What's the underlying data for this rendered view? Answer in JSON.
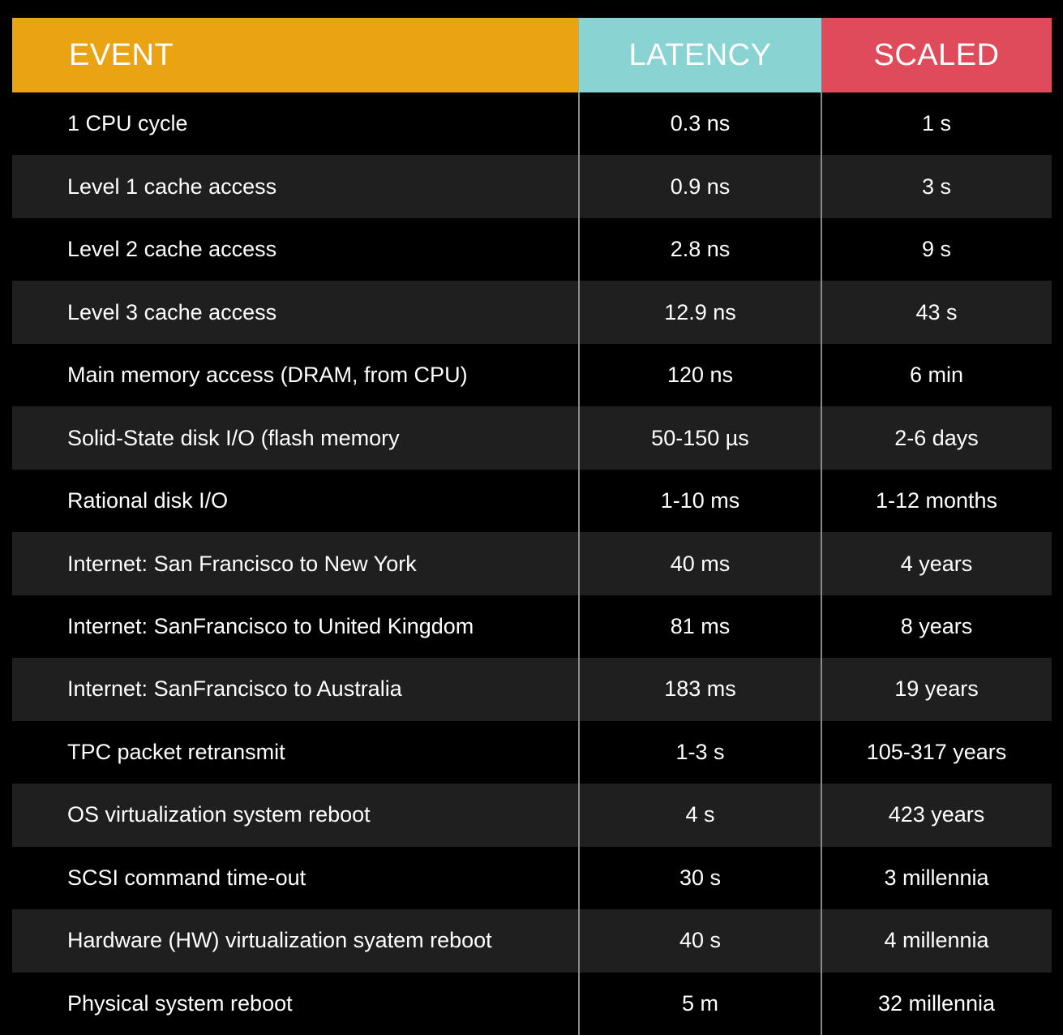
{
  "headers": {
    "event": "EVENT",
    "latency": "LATENCY",
    "scaled": "SCALED"
  },
  "colors": {
    "event_header": "#e9a313",
    "latency_header": "#89d3d3",
    "scaled_header": "#e04b5b",
    "row_alt": "#1f1f1f",
    "background": "#000000"
  },
  "rows": [
    {
      "event": "1 CPU cycle",
      "latency": "0.3 ns",
      "scaled": "1 s"
    },
    {
      "event": "Level 1 cache access",
      "latency": "0.9 ns",
      "scaled": "3 s"
    },
    {
      "event": "Level 2 cache access",
      "latency": "2.8 ns",
      "scaled": "9 s"
    },
    {
      "event": "Level 3 cache access",
      "latency": "12.9 ns",
      "scaled": "43 s"
    },
    {
      "event": "Main memory access (DRAM, from CPU)",
      "latency": "120 ns",
      "scaled": "6 min"
    },
    {
      "event": "Solid-State disk I/O (flash memory",
      "latency": "50-150 µs",
      "scaled": "2-6 days"
    },
    {
      "event": "Rational disk I/O",
      "latency": "1-10 ms",
      "scaled": "1-12 months"
    },
    {
      "event": "Internet: San Francisco to New York",
      "latency": "40 ms",
      "scaled": "4 years"
    },
    {
      "event": "Internet: SanFrancisco to United Kingdom",
      "latency": "81 ms",
      "scaled": "8 years"
    },
    {
      "event": "Internet: SanFrancisco to Australia",
      "latency": "183 ms",
      "scaled": "19 years"
    },
    {
      "event": "TPC packet retransmit",
      "latency": "1-3 s",
      "scaled": "105-317 years"
    },
    {
      "event": "OS virtualization system reboot",
      "latency": "4 s",
      "scaled": "423 years"
    },
    {
      "event": "SCSI command time-out",
      "latency": "30 s",
      "scaled": "3 millennia"
    },
    {
      "event": "Hardware (HW) virtualization syatem reboot",
      "latency": "40 s",
      "scaled": "4 millennia"
    },
    {
      "event": "Physical system reboot",
      "latency": "5 m",
      "scaled": "32 millennia"
    }
  ]
}
